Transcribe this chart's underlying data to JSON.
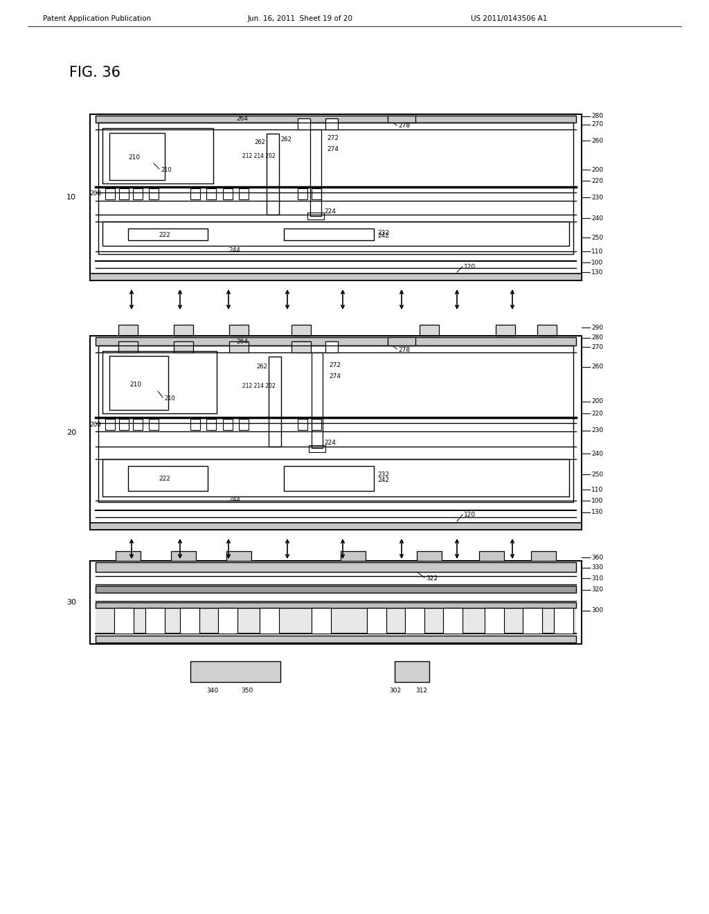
{
  "header_left": "Patent Application Publication",
  "header_mid": "Jun. 16, 2011  Sheet 19 of 20",
  "header_right": "US 2011/0143506 A1",
  "fig_label": "FIG. 36",
  "bg_color": "#ffffff",
  "lc": "#000000"
}
